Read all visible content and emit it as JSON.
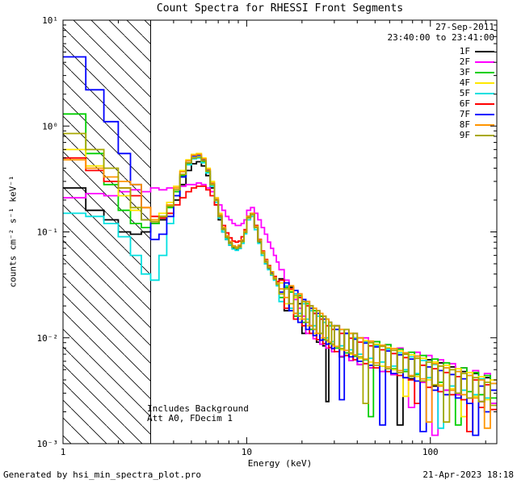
{
  "annotations": {
    "date": "27-Sep-2011",
    "time_range": "23:40:00 to 23:41:00",
    "note_line1": "Includes Background",
    "note_line2": "Att A0, FDecim 1"
  },
  "footer": {
    "left": "Generated by hsi_min_spectra_plot.pro",
    "right": "21-Apr-2023 18:18"
  },
  "chart_data": {
    "type": "line",
    "draw_style": "histogram-steps",
    "title": "Count Spectra for RHESSI Front Segments",
    "xlabel": "Energy (keV)",
    "ylabel": "counts cm⁻² s⁻¹ keV⁻¹",
    "x_scale": "log",
    "y_scale": "log",
    "xlim": [
      1,
      230
    ],
    "ylim": [
      0.001,
      10
    ],
    "x_major_ticks": [
      1,
      10,
      100
    ],
    "x_tick_labels": [
      "1",
      "10",
      "100"
    ],
    "y_major_ticks": [
      0.001,
      0.01,
      0.1,
      1,
      10
    ],
    "y_tick_labels": [
      "10⁻³",
      "10⁻²",
      "10⁻¹",
      "10⁰",
      "10¹"
    ],
    "grid": false,
    "legend_position": "top-right",
    "excluded_region": {
      "from": 1,
      "to": 3,
      "style": "hatched"
    },
    "colors": {
      "background": "#ffffff",
      "axis": "#000000"
    },
    "energy_bin_edges_keV": [
      1.0,
      1.33,
      1.67,
      2.0,
      2.33,
      2.67,
      3.0,
      3.33,
      3.67,
      4.0,
      4.33,
      4.67,
      5.0,
      5.33,
      5.67,
      6.0,
      6.33,
      6.67,
      7.0,
      7.33,
      7.67,
      8.0,
      8.33,
      8.67,
      9.0,
      9.33,
      9.67,
      10.0,
      10.5,
      11.0,
      11.5,
      12.0,
      12.5,
      13.0,
      13.5,
      14.0,
      14.5,
      15.0,
      16,
      17,
      18,
      19,
      20,
      21,
      22,
      23,
      24,
      25,
      26,
      27,
      28,
      29,
      30,
      32,
      34,
      36,
      38,
      40,
      43,
      46,
      49,
      53,
      57,
      61,
      66,
      71,
      76,
      82,
      88,
      95,
      102,
      110,
      118,
      127,
      137,
      147,
      158,
      170,
      183,
      197,
      212,
      230
    ],
    "series": [
      {
        "name": "1F",
        "color": "#000000",
        "values": [
          0.26,
          0.16,
          0.13,
          0.1,
          0.095,
          0.1,
          0.12,
          0.13,
          0.15,
          0.2,
          0.28,
          0.38,
          0.44,
          0.46,
          0.42,
          0.34,
          0.26,
          0.18,
          0.13,
          0.1,
          0.085,
          0.075,
          0.07,
          0.068,
          0.07,
          0.08,
          0.1,
          0.14,
          0.15,
          0.11,
          0.08,
          0.06,
          0.05,
          0.045,
          0.04,
          0.036,
          0.032,
          0.036,
          0.018,
          0.03,
          0.017,
          0.021,
          0.011,
          0.022,
          0.013,
          0.017,
          0.0091,
          0.016,
          0.0084,
          0.0025,
          0.013,
          0.0074,
          0.013,
          0.0066,
          0.011,
          0.0061,
          0.01,
          0.0056,
          0.0092,
          0.0052,
          0.0085,
          0.0048,
          0.0079,
          0.0045,
          0.0015,
          0.0072,
          0.0041,
          0.0067,
          0.0038,
          0.0062,
          0.0035,
          0.0058,
          0.0032,
          0.0053,
          0.0029,
          0.0048,
          0.0027,
          0.0046,
          0.0025,
          0.0042,
          0.0024
        ]
      },
      {
        "name": "2F",
        "color": "#FF00FF",
        "values": [
          0.21,
          0.23,
          0.22,
          0.24,
          0.25,
          0.24,
          0.26,
          0.25,
          0.26,
          0.27,
          0.27,
          0.28,
          0.28,
          0.29,
          0.28,
          0.26,
          0.24,
          0.21,
          0.18,
          0.16,
          0.14,
          0.13,
          0.12,
          0.115,
          0.115,
          0.12,
          0.13,
          0.16,
          0.17,
          0.15,
          0.13,
          0.11,
          0.095,
          0.08,
          0.07,
          0.06,
          0.052,
          0.044,
          0.035,
          0.028,
          0.023,
          0.019,
          0.016,
          0.011,
          0.02,
          0.0098,
          0.018,
          0.0087,
          0.016,
          0.008,
          0.014,
          0.0074,
          0.013,
          0.0067,
          0.012,
          0.0061,
          0.011,
          0.0056,
          0.01,
          0.0052,
          0.0092,
          0.0048,
          0.0086,
          0.0045,
          0.008,
          0.0042,
          0.0022,
          0.0073,
          0.0038,
          0.0068,
          0.0012,
          0.0062,
          0.0032,
          0.0057,
          0.0029,
          0.0052,
          0.0027,
          0.0049,
          0.0025,
          0.0046,
          0.0024
        ]
      },
      {
        "name": "3F",
        "color": "#00CF00",
        "values": [
          1.3,
          0.55,
          0.28,
          0.16,
          0.12,
          0.11,
          0.12,
          0.14,
          0.17,
          0.24,
          0.34,
          0.44,
          0.5,
          0.51,
          0.46,
          0.37,
          0.28,
          0.2,
          0.14,
          0.105,
          0.088,
          0.078,
          0.072,
          0.07,
          0.073,
          0.082,
          0.1,
          0.14,
          0.15,
          0.115,
          0.085,
          0.065,
          0.054,
          0.047,
          0.041,
          0.037,
          0.033,
          0.024,
          0.03,
          0.027,
          0.016,
          0.025,
          0.014,
          0.021,
          0.012,
          0.018,
          0.011,
          0.016,
          0.0096,
          0.015,
          0.0088,
          0.013,
          0.008,
          0.012,
          0.0072,
          0.011,
          0.0067,
          0.01,
          0.0062,
          0.0018,
          0.0092,
          0.0054,
          0.0086,
          0.0051,
          0.0078,
          0.0048,
          0.0073,
          0.0045,
          0.0068,
          0.0042,
          0.0063,
          0.0038,
          0.0058,
          0.0035,
          0.0015,
          0.0052,
          0.0031,
          0.0047,
          0.0029,
          0.0044,
          0.0027
        ]
      },
      {
        "name": "4F",
        "color": "#FFE800",
        "values": [
          0.6,
          0.42,
          0.3,
          0.22,
          0.16,
          0.13,
          0.13,
          0.15,
          0.19,
          0.27,
          0.38,
          0.48,
          0.54,
          0.55,
          0.5,
          0.4,
          0.3,
          0.21,
          0.15,
          0.11,
          0.09,
          0.08,
          0.073,
          0.07,
          0.072,
          0.08,
          0.098,
          0.135,
          0.145,
          0.11,
          0.082,
          0.063,
          0.052,
          0.046,
          0.04,
          0.036,
          0.032,
          0.033,
          0.021,
          0.028,
          0.024,
          0.015,
          0.022,
          0.013,
          0.019,
          0.011,
          0.017,
          0.01,
          0.015,
          0.0092,
          0.014,
          0.0084,
          0.012,
          0.0077,
          0.011,
          0.007,
          0.01,
          0.0064,
          0.0094,
          0.0059,
          0.0087,
          0.0054,
          0.0081,
          0.005,
          0.0075,
          0.0028,
          0.0069,
          0.0043,
          0.0064,
          0.004,
          0.0059,
          0.0036,
          0.0055,
          0.0033,
          0.0051,
          0.0018,
          0.0047,
          0.0028,
          0.0043,
          0.0026,
          0.004
        ]
      },
      {
        "name": "5F",
        "color": "#00E0E0",
        "values": [
          0.15,
          0.14,
          0.12,
          0.09,
          0.06,
          0.04,
          0.035,
          0.06,
          0.12,
          0.22,
          0.33,
          0.43,
          0.49,
          0.5,
          0.45,
          0.36,
          0.27,
          0.19,
          0.135,
          0.1,
          0.085,
          0.075,
          0.069,
          0.067,
          0.07,
          0.078,
          0.096,
          0.13,
          0.14,
          0.105,
          0.078,
          0.06,
          0.05,
          0.044,
          0.039,
          0.035,
          0.031,
          0.022,
          0.031,
          0.019,
          0.026,
          0.017,
          0.021,
          0.015,
          0.018,
          0.013,
          0.016,
          0.011,
          0.014,
          0.01,
          0.013,
          0.0092,
          0.012,
          0.0084,
          0.011,
          0.0077,
          0.0099,
          0.007,
          0.0091,
          0.0064,
          0.0084,
          0.0059,
          0.0078,
          0.0054,
          0.0072,
          0.005,
          0.0066,
          0.0046,
          0.0061,
          0.0042,
          0.0056,
          0.0014,
          0.0052,
          0.0035,
          0.0048,
          0.0032,
          0.0044,
          0.0029,
          0.0041,
          0.0027,
          0.0037
        ]
      },
      {
        "name": "6F",
        "color": "#FF0000",
        "values": [
          0.5,
          0.38,
          0.3,
          0.26,
          0.22,
          0.17,
          0.14,
          0.135,
          0.15,
          0.18,
          0.21,
          0.24,
          0.26,
          0.27,
          0.27,
          0.25,
          0.22,
          0.18,
          0.14,
          0.115,
          0.098,
          0.088,
          0.082,
          0.08,
          0.082,
          0.09,
          0.105,
          0.14,
          0.15,
          0.115,
          0.085,
          0.066,
          0.055,
          0.048,
          0.042,
          0.038,
          0.034,
          0.035,
          0.019,
          0.029,
          0.015,
          0.024,
          0.013,
          0.02,
          0.011,
          0.017,
          0.0096,
          0.015,
          0.0088,
          0.013,
          0.0081,
          0.012,
          0.0074,
          0.011,
          0.0068,
          0.0099,
          0.0062,
          0.0091,
          0.0057,
          0.0084,
          0.0052,
          0.0077,
          0.0048,
          0.0071,
          0.0044,
          0.0065,
          0.004,
          0.0024,
          0.0055,
          0.0034,
          0.0051,
          0.0031,
          0.0047,
          0.0029,
          0.0043,
          0.0026,
          0.0013,
          0.004,
          0.0022,
          0.0036,
          0.0021
        ]
      },
      {
        "name": "7F",
        "color": "#0000FF",
        "values": [
          4.5,
          2.2,
          1.1,
          0.55,
          0.28,
          0.13,
          0.085,
          0.095,
          0.14,
          0.22,
          0.33,
          0.45,
          0.52,
          0.53,
          0.48,
          0.38,
          0.285,
          0.2,
          0.142,
          0.107,
          0.09,
          0.079,
          0.073,
          0.071,
          0.074,
          0.083,
          0.1,
          0.138,
          0.148,
          0.112,
          0.083,
          0.064,
          0.053,
          0.046,
          0.041,
          0.037,
          0.033,
          0.027,
          0.033,
          0.018,
          0.028,
          0.014,
          0.023,
          0.012,
          0.019,
          0.0105,
          0.017,
          0.0095,
          0.015,
          0.0087,
          0.014,
          0.0079,
          0.012,
          0.0026,
          0.011,
          0.0066,
          0.0097,
          0.006,
          0.0089,
          0.0055,
          0.0082,
          0.0015,
          0.0075,
          0.0046,
          0.0069,
          0.0042,
          0.0063,
          0.0039,
          0.0013,
          0.0053,
          0.0032,
          0.0049,
          0.0029,
          0.0045,
          0.0027,
          0.0041,
          0.0024,
          0.0012,
          0.0035,
          0.002,
          0.0032
        ]
      },
      {
        "name": "8F",
        "color": "#FF9500",
        "values": [
          0.48,
          0.4,
          0.33,
          0.3,
          0.28,
          0.17,
          0.13,
          0.14,
          0.18,
          0.26,
          0.37,
          0.47,
          0.53,
          0.54,
          0.49,
          0.39,
          0.29,
          0.205,
          0.145,
          0.11,
          0.092,
          0.081,
          0.074,
          0.072,
          0.075,
          0.084,
          0.102,
          0.14,
          0.15,
          0.113,
          0.084,
          0.065,
          0.054,
          0.047,
          0.042,
          0.037,
          0.033,
          0.029,
          0.024,
          0.031,
          0.017,
          0.026,
          0.015,
          0.022,
          0.013,
          0.019,
          0.011,
          0.017,
          0.01,
          0.015,
          0.0091,
          0.013,
          0.0083,
          0.012,
          0.0076,
          0.011,
          0.0069,
          0.01,
          0.0063,
          0.0093,
          0.0058,
          0.0085,
          0.0053,
          0.0079,
          0.0049,
          0.0072,
          0.0044,
          0.0067,
          0.0041,
          0.0016,
          0.0057,
          0.0035,
          0.0052,
          0.0032,
          0.0048,
          0.0029,
          0.0044,
          0.0027,
          0.004,
          0.0014,
          0.0037
        ]
      },
      {
        "name": "9F",
        "color": "#A8A800",
        "values": [
          0.85,
          0.6,
          0.4,
          0.26,
          0.17,
          0.13,
          0.125,
          0.14,
          0.175,
          0.25,
          0.35,
          0.45,
          0.5,
          0.51,
          0.47,
          0.375,
          0.28,
          0.198,
          0.14,
          0.106,
          0.089,
          0.078,
          0.072,
          0.07,
          0.072,
          0.081,
          0.099,
          0.136,
          0.146,
          0.11,
          0.081,
          0.063,
          0.052,
          0.046,
          0.04,
          0.036,
          0.032,
          0.026,
          0.029,
          0.021,
          0.025,
          0.016,
          0.022,
          0.014,
          0.02,
          0.012,
          0.018,
          0.011,
          0.016,
          0.0095,
          0.014,
          0.0087,
          0.013,
          0.0079,
          0.012,
          0.0072,
          0.011,
          0.0066,
          0.0024,
          0.009,
          0.0055,
          0.0083,
          0.0051,
          0.0076,
          0.0047,
          0.007,
          0.0043,
          0.0064,
          0.0039,
          0.0059,
          0.0036,
          0.0054,
          0.0016,
          0.005,
          0.003,
          0.0046,
          0.0027,
          0.0042,
          0.0025,
          0.0038,
          0.0023
        ]
      }
    ]
  }
}
